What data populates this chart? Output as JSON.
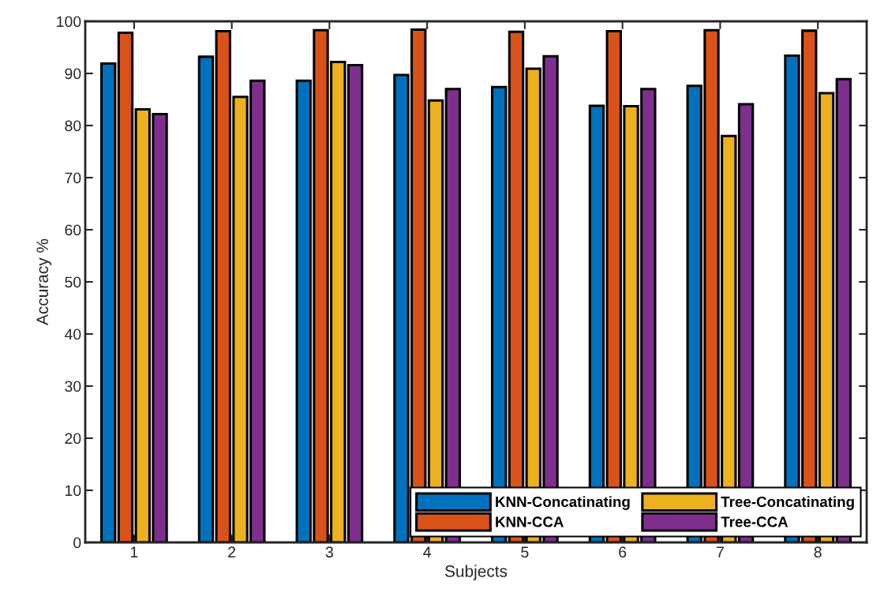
{
  "chart_data": {
    "type": "bar",
    "xlabel": "Subjects",
    "ylabel": "Accuracy %",
    "categories": [
      "1",
      "2",
      "3",
      "4",
      "5",
      "6",
      "7",
      "8"
    ],
    "series": [
      {
        "name": "KNN-Concatinating",
        "color": "#0072bd",
        "values": [
          91.9,
          93.2,
          88.6,
          89.7,
          87.4,
          83.8,
          87.6,
          93.4
        ]
      },
      {
        "name": "KNN-CCA",
        "color": "#d95319",
        "values": [
          97.8,
          98.1,
          98.3,
          98.4,
          98.0,
          98.1,
          98.3,
          98.2
        ]
      },
      {
        "name": "Tree-Concatinating",
        "color": "#edb120",
        "values": [
          83.1,
          85.5,
          92.2,
          84.8,
          90.9,
          83.7,
          78.0,
          86.2
        ]
      },
      {
        "name": "Tree-CCA",
        "color": "#7e2f8e",
        "values": [
          82.2,
          88.6,
          91.6,
          87.0,
          93.3,
          87.0,
          84.1,
          88.9
        ]
      }
    ],
    "ylim": [
      0,
      100
    ],
    "yticks": [
      0,
      10,
      20,
      30,
      40,
      50,
      60,
      70,
      80,
      90,
      100
    ],
    "grid": false,
    "legend": "bottom right"
  }
}
